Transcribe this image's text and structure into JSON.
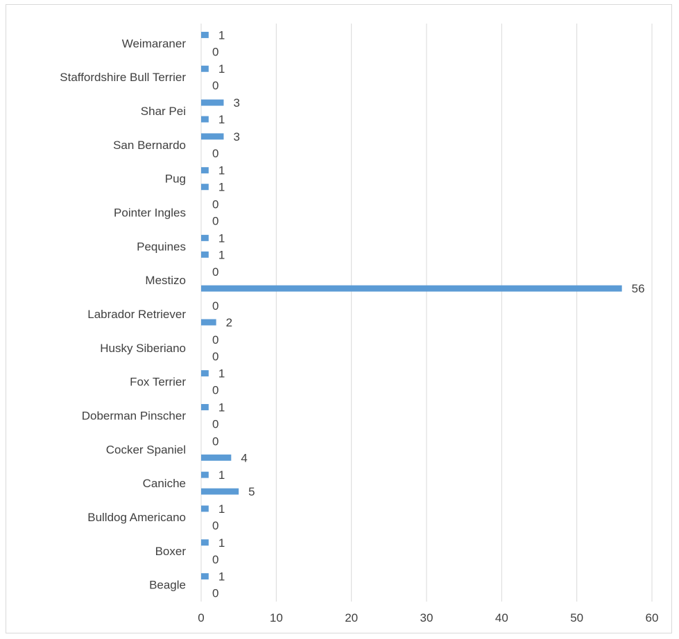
{
  "chart_data": {
    "type": "bar",
    "orientation": "horizontal",
    "title": "",
    "xlabel": "",
    "ylabel": "",
    "xlim": [
      0,
      60
    ],
    "x_ticks": [
      0,
      10,
      20,
      30,
      40,
      50,
      60
    ],
    "grid": "vertical",
    "legend": "none",
    "bar_color": "#5b9bd5",
    "categories": [
      "Beagle",
      "Boxer",
      "Bulldog Americano",
      "Caniche",
      "Cocker Spaniel",
      "Doberman Pinscher",
      "Fox Terrier",
      "Husky Siberiano",
      "Labrador Retriever",
      "Mestizo",
      "Pequines",
      "Pointer Ingles",
      "Pug",
      "San Bernardo",
      "Shar Pei",
      "Staffordshire Bull Terrier",
      "Weimaraner"
    ],
    "series": [
      {
        "values": [
          0,
          0,
          0,
          5,
          4,
          0,
          0,
          0,
          2,
          56,
          1,
          0,
          1,
          0,
          1,
          0,
          0
        ]
      },
      {
        "values": [
          1,
          1,
          1,
          1,
          0,
          1,
          1,
          0,
          0,
          0,
          1,
          0,
          1,
          3,
          3,
          1,
          1
        ]
      }
    ]
  }
}
